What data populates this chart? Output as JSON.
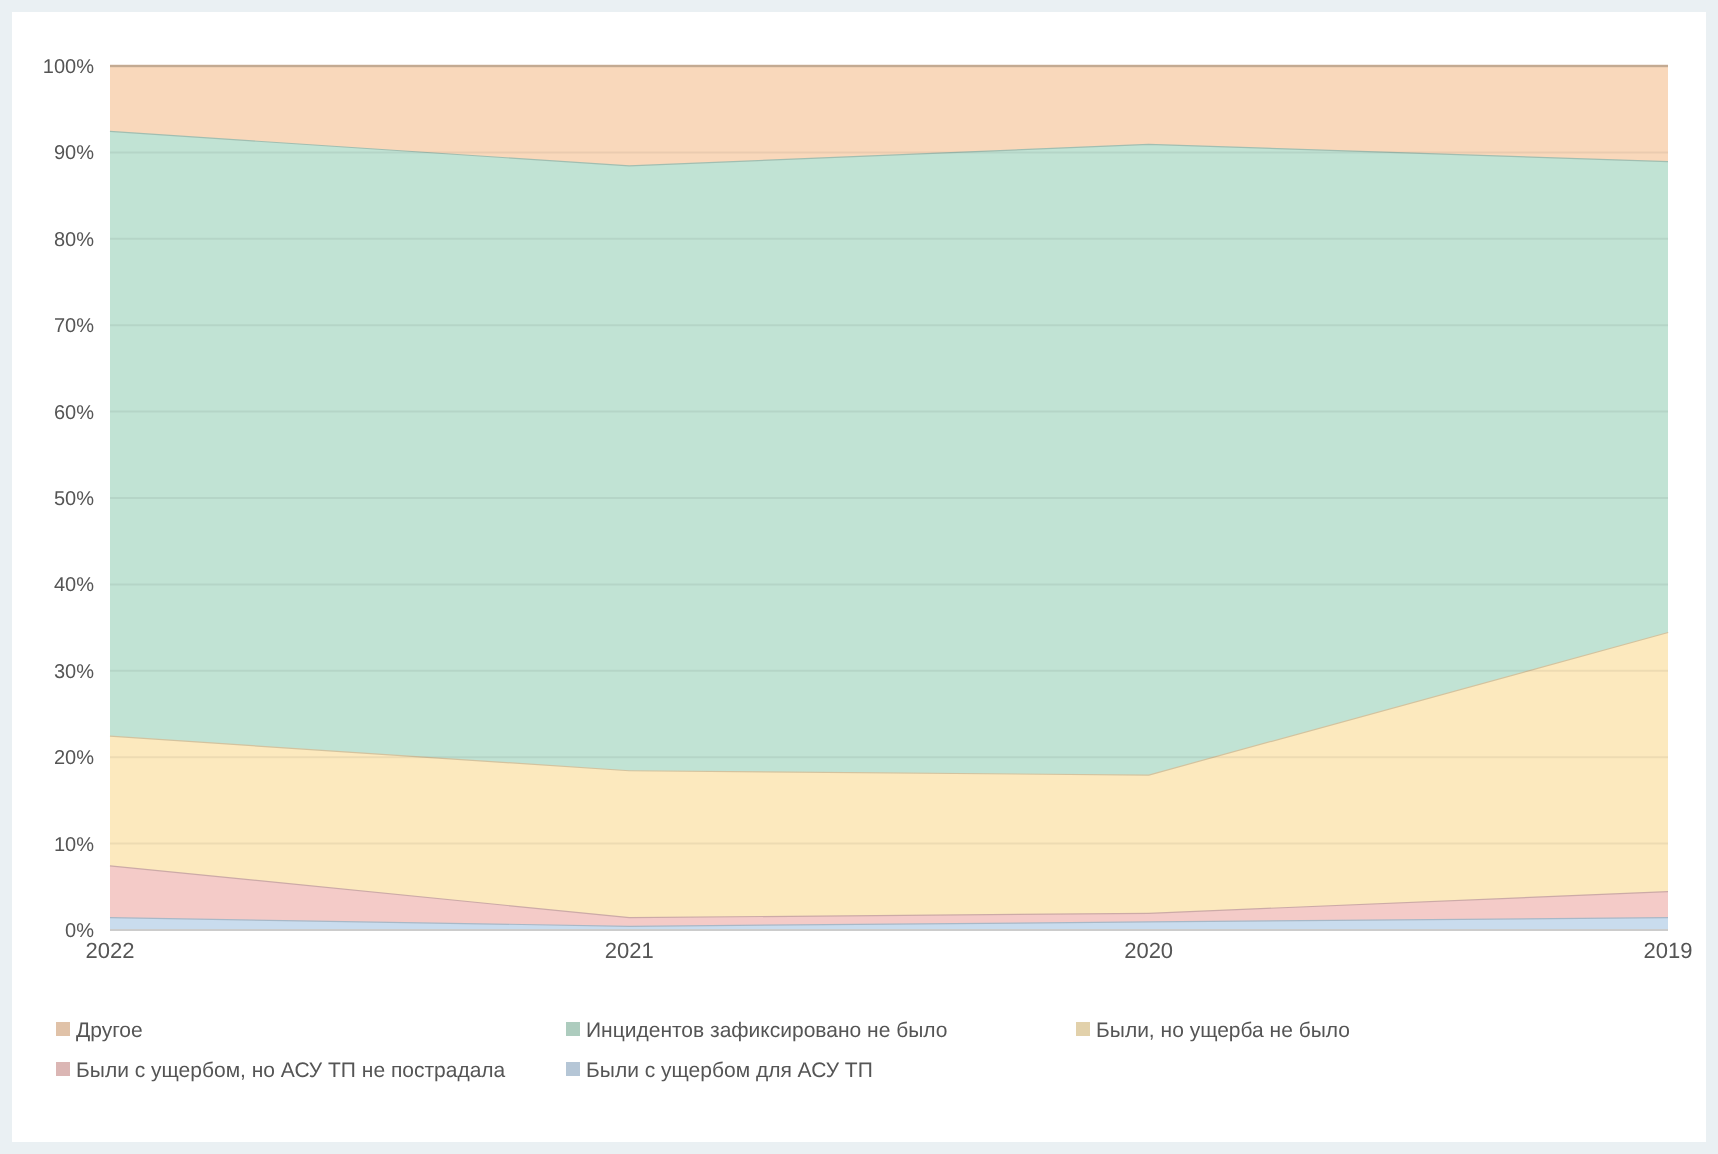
{
  "chart_data": {
    "type": "area",
    "stacked": true,
    "categories": [
      "2022",
      "2021",
      "2020",
      "2019"
    ],
    "series": [
      {
        "name": "Были с ущербом для АСУ ТП",
        "color": "#c9dcee",
        "values": [
          1.5,
          0.5,
          1,
          1.5
        ]
      },
      {
        "name": "Были с ущербом, но АСУ ТП не пострадала",
        "color": "#f4cbc8",
        "values": [
          6,
          1,
          1,
          3
        ]
      },
      {
        "name": "Были, но ущерба не было",
        "color": "#fce9be",
        "values": [
          15,
          17,
          16,
          30
        ]
      },
      {
        "name": "Инцидентов зафиксировано не было",
        "color": "#c1e3d4",
        "values": [
          70,
          70,
          73,
          54.5
        ]
      },
      {
        "name": "Другое",
        "color": "#f9d8bb",
        "values": [
          7.5,
          11.5,
          9,
          11
        ]
      }
    ],
    "ylim": [
      0,
      100
    ],
    "yticks": [
      {
        "value": 0,
        "label": "0%"
      },
      {
        "value": 10,
        "label": "10%"
      },
      {
        "value": 20,
        "label": "20%"
      },
      {
        "value": 30,
        "label": "30%"
      },
      {
        "value": 40,
        "label": "40%"
      },
      {
        "value": 50,
        "label": "50%"
      },
      {
        "value": 60,
        "label": "60%"
      },
      {
        "value": 70,
        "label": "70%"
      },
      {
        "value": 80,
        "label": "80%"
      },
      {
        "value": 90,
        "label": "90%"
      },
      {
        "value": 100,
        "label": "100%"
      }
    ],
    "grid": "y",
    "legend": "bottom"
  }
}
